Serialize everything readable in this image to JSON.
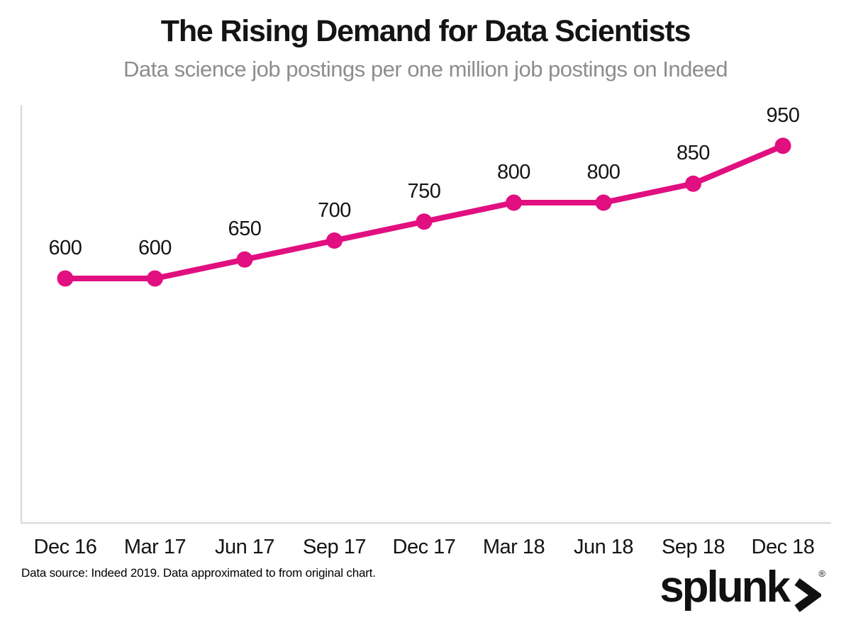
{
  "page": {
    "footnote": "Data source: Indeed 2019. Data approximated to from original chart.",
    "logo": {
      "text": "splunk",
      "mark": ">",
      "registered": "®"
    }
  },
  "colors": {
    "accent": "#e10f80",
    "axis": "#dcdcdc",
    "label_text": "#141414",
    "subtitle_text": "#8d8d8d"
  },
  "chart_data": {
    "type": "line",
    "title": "The Rising Demand for Data Scientists",
    "subtitle": "Data science job postings per one million job postings on Indeed",
    "categories": [
      "Dec 16",
      "Mar 17",
      "Jun 17",
      "Sep 17",
      "Dec 17",
      "Mar 18",
      "Jun 18",
      "Sep 18",
      "Dec 18"
    ],
    "values": [
      600,
      600,
      650,
      700,
      750,
      800,
      800,
      850,
      950
    ],
    "xlabel": "",
    "ylabel": "",
    "ylim": [
      -45,
      1090
    ],
    "grid": false,
    "legend": false,
    "data_labels": true,
    "marker": "circle"
  }
}
